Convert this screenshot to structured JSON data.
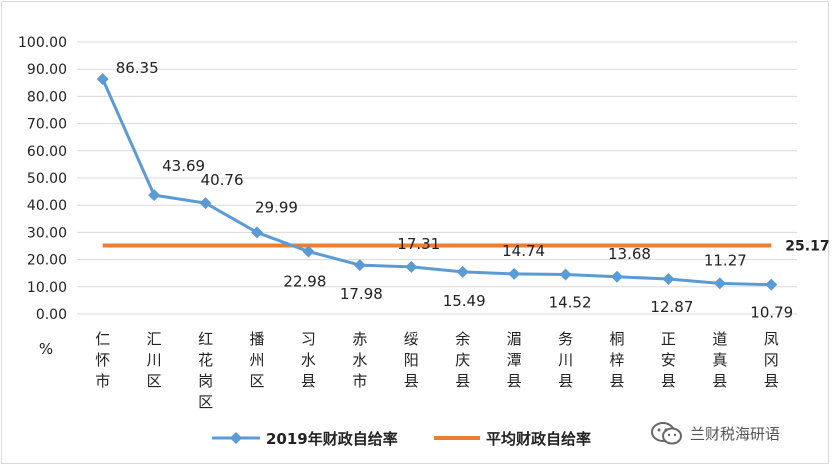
{
  "chart_data": {
    "type": "line",
    "categories": [
      "仁怀市",
      "汇川区",
      "红花岗区",
      "播州区",
      "习水县",
      "赤水市",
      "绥阳县",
      "余庆县",
      "湄潭县",
      "务川县",
      "桐梓县",
      "正安县",
      "道真县",
      "凤冈县"
    ],
    "series": [
      {
        "name": "2019年财政自给率",
        "values": [
          86.35,
          43.69,
          40.76,
          29.99,
          22.98,
          17.98,
          17.31,
          15.49,
          14.74,
          14.52,
          13.68,
          12.87,
          11.27,
          10.79
        ],
        "labels": [
          "86.35",
          "43.69",
          "40.76",
          "29.99",
          "22.98",
          "17.98",
          "17.31",
          "15.49",
          "14.74",
          "14.52",
          "13.68",
          "12.87",
          "11.27",
          "10.79"
        ],
        "color": "#5b9bd5",
        "marker": "diamond"
      },
      {
        "name": "平均财政自给率",
        "values": [
          25.17,
          25.17,
          25.17,
          25.17,
          25.17,
          25.17,
          25.17,
          25.17,
          25.17,
          25.17,
          25.17,
          25.17,
          25.17,
          25.17
        ],
        "end_label": "25.17",
        "color": "#ed7d31"
      }
    ],
    "ylim": [
      0,
      100
    ],
    "yticks": [
      "0.00",
      "10.00",
      "20.00",
      "30.00",
      "40.00",
      "50.00",
      "60.00",
      "70.00",
      "80.00",
      "90.00",
      "100.00"
    ],
    "y_unit": "%",
    "grid": true,
    "legend": "bottom"
  },
  "watermark": {
    "text": "兰财税海研语",
    "icon": "wechat-icon"
  }
}
